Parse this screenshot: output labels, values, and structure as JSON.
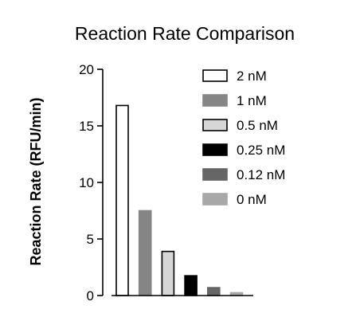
{
  "chart_data": {
    "type": "bar",
    "title": "Reaction Rate Comparison",
    "xlabel": "",
    "ylabel": "Reaction Rate (RFU/min)",
    "ylim": [
      0,
      20
    ],
    "yticks": [
      0,
      5,
      10,
      15,
      20
    ],
    "legend_position": "top-right",
    "series": [
      {
        "name": "2 nM",
        "value": 16.8,
        "fill": "#ffffff",
        "stroke": "#000000"
      },
      {
        "name": "1 nM",
        "value": 7.5,
        "fill": "#858585",
        "stroke": "#858585"
      },
      {
        "name": "0.5 nM",
        "value": 3.9,
        "fill": "#d6d6d6",
        "stroke": "#000000"
      },
      {
        "name": "0.25 nM",
        "value": 1.75,
        "fill": "#000000",
        "stroke": "#000000"
      },
      {
        "name": "0.12 nM",
        "value": 0.7,
        "fill": "#666666",
        "stroke": "#666666"
      },
      {
        "name": "0  nM",
        "value": 0.25,
        "fill": "#a8a8a8",
        "stroke": "#a8a8a8"
      }
    ]
  }
}
